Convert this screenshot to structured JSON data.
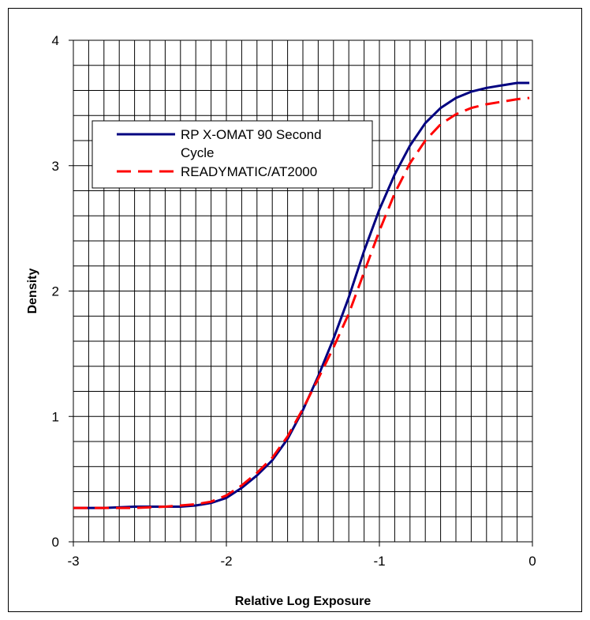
{
  "chart_data": {
    "type": "line",
    "title": "",
    "xlabel": "Relative Log Exposure",
    "ylabel": "Density",
    "xlim": [
      -3,
      0
    ],
    "ylim": [
      0,
      4
    ],
    "x_ticks": [
      "-3",
      "-2",
      "-1",
      "0"
    ],
    "y_ticks": [
      "0",
      "1",
      "2",
      "3",
      "4"
    ],
    "grid": true,
    "legend_position": "upper-left",
    "series": [
      {
        "name": "RP X-OMAT 90 Second Cycle",
        "color": "#000080",
        "style": "solid",
        "points": [
          [
            -3.0,
            0.27
          ],
          [
            -2.8,
            0.27
          ],
          [
            -2.6,
            0.28
          ],
          [
            -2.4,
            0.28
          ],
          [
            -2.3,
            0.28
          ],
          [
            -2.2,
            0.29
          ],
          [
            -2.1,
            0.31
          ],
          [
            -2.0,
            0.35
          ],
          [
            -1.9,
            0.43
          ],
          [
            -1.8,
            0.53
          ],
          [
            -1.7,
            0.65
          ],
          [
            -1.6,
            0.82
          ],
          [
            -1.5,
            1.05
          ],
          [
            -1.4,
            1.32
          ],
          [
            -1.3,
            1.62
          ],
          [
            -1.2,
            1.95
          ],
          [
            -1.1,
            2.32
          ],
          [
            -1.0,
            2.65
          ],
          [
            -0.9,
            2.93
          ],
          [
            -0.8,
            3.16
          ],
          [
            -0.7,
            3.34
          ],
          [
            -0.6,
            3.46
          ],
          [
            -0.5,
            3.54
          ],
          [
            -0.4,
            3.59
          ],
          [
            -0.3,
            3.62
          ],
          [
            -0.2,
            3.64
          ],
          [
            -0.1,
            3.66
          ],
          [
            -0.02,
            3.66
          ]
        ]
      },
      {
        "name": "READYMATIC/AT2000",
        "color": "#ff0000",
        "style": "dashed",
        "points": [
          [
            -3.0,
            0.27
          ],
          [
            -2.8,
            0.27
          ],
          [
            -2.6,
            0.27
          ],
          [
            -2.4,
            0.28
          ],
          [
            -2.3,
            0.29
          ],
          [
            -2.2,
            0.3
          ],
          [
            -2.1,
            0.32
          ],
          [
            -2.0,
            0.37
          ],
          [
            -1.9,
            0.45
          ],
          [
            -1.8,
            0.55
          ],
          [
            -1.7,
            0.67
          ],
          [
            -1.6,
            0.84
          ],
          [
            -1.5,
            1.06
          ],
          [
            -1.4,
            1.3
          ],
          [
            -1.3,
            1.55
          ],
          [
            -1.2,
            1.82
          ],
          [
            -1.1,
            2.15
          ],
          [
            -1.0,
            2.48
          ],
          [
            -0.9,
            2.78
          ],
          [
            -0.8,
            3.02
          ],
          [
            -0.7,
            3.2
          ],
          [
            -0.6,
            3.33
          ],
          [
            -0.5,
            3.41
          ],
          [
            -0.4,
            3.46
          ],
          [
            -0.3,
            3.49
          ],
          [
            -0.2,
            3.51
          ],
          [
            -0.1,
            3.53
          ],
          [
            -0.02,
            3.54
          ]
        ]
      }
    ]
  },
  "legend": {
    "line1": "RP X-OMAT 90 Second",
    "line2": "Cycle",
    "line3": "READYMATIC/AT2000"
  }
}
